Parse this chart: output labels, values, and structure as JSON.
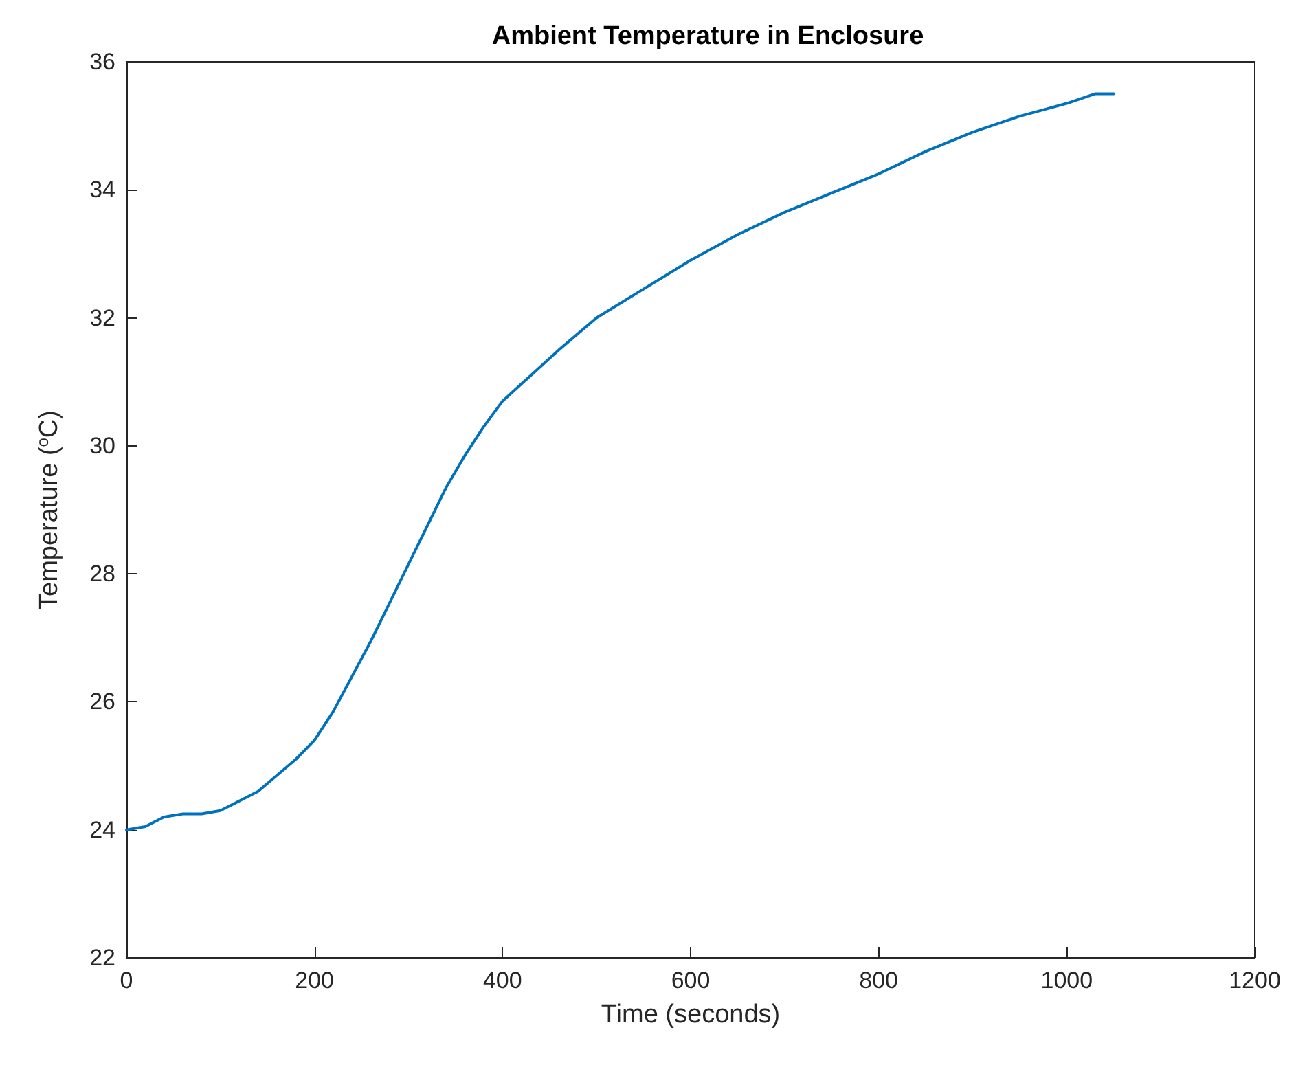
{
  "chart_data": {
    "type": "line",
    "title": "Ambient Temperature in Enclosure",
    "xlabel": "Time (seconds)",
    "ylabel": "Temperature ($^{o}$C)",
    "xlim": [
      0,
      1200
    ],
    "xticks": [
      0,
      200,
      400,
      600,
      800,
      1000,
      1200
    ],
    "ylim": [
      22,
      36
    ],
    "yticks": [
      22,
      24,
      26,
      28,
      30,
      32,
      34,
      36
    ],
    "grid": false,
    "series": [
      {
        "color": "#0072bd",
        "x": [
          0,
          20,
          40,
          60,
          80,
          100,
          120,
          140,
          160,
          180,
          200,
          220,
          240,
          260,
          280,
          300,
          320,
          340,
          360,
          380,
          400,
          430,
          460,
          500,
          550,
          600,
          650,
          700,
          750,
          800,
          850,
          900,
          950,
          1000,
          1030,
          1050
        ],
        "values": [
          24.0,
          24.05,
          24.2,
          24.25,
          24.25,
          24.3,
          24.45,
          24.6,
          24.85,
          25.1,
          25.4,
          25.85,
          26.4,
          26.95,
          27.55,
          28.15,
          28.75,
          29.35,
          29.85,
          30.3,
          30.7,
          31.1,
          31.5,
          32.0,
          32.45,
          32.9,
          33.3,
          33.65,
          33.95,
          34.25,
          34.6,
          34.9,
          35.15,
          35.35,
          35.5,
          35.5
        ]
      }
    ]
  }
}
